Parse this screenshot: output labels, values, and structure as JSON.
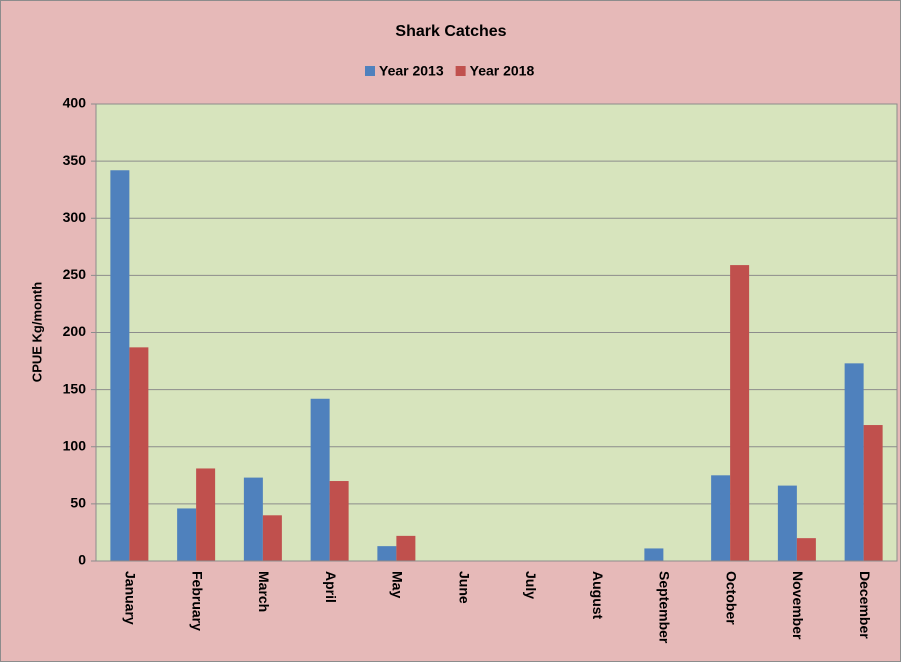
{
  "chart_data": {
    "type": "bar",
    "title": "Shark Catches",
    "y_label": "CPUE  Kg/month",
    "categories": [
      "January",
      "February",
      "March",
      "April",
      "May",
      "June",
      "July",
      "August",
      "September",
      "October",
      "November",
      "December"
    ],
    "series": [
      {
        "name": "Year 2013",
        "color": "#4f81bd",
        "values": [
          342,
          46,
          73,
          142,
          13,
          0,
          0,
          0,
          11,
          75,
          66,
          173
        ]
      },
      {
        "name": "Year 2018",
        "color": "#c0504d",
        "values": [
          187,
          81,
          40,
          70,
          22,
          0,
          0,
          0,
          0,
          259,
          20,
          119
        ]
      }
    ],
    "ylim": [
      0,
      400
    ],
    "yticks": [
      0,
      50,
      100,
      150,
      200,
      250,
      300,
      350,
      400
    ],
    "grid": true,
    "legend": "top"
  }
}
